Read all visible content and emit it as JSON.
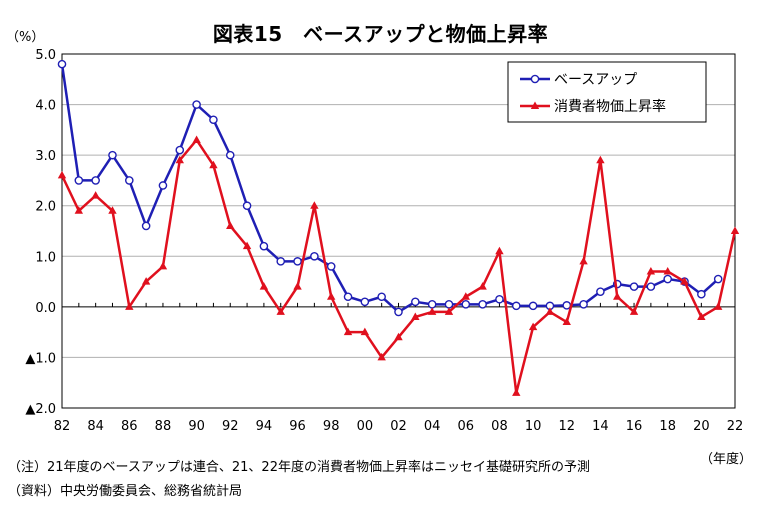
{
  "title": "図表15　ベースアップと物価上昇率",
  "y_unit": "（%）",
  "x_unit": "（年度）",
  "notes": [
    "（注）21年度のベースアップは連合、21、22年度の消費者物価上昇率はニッセイ基礎研究所の予測",
    "（資料）中央労働委員会、総務省統計局"
  ],
  "colors": {
    "base_up": "#1f1fb4",
    "cpi": "#e0101e",
    "grid": "#b0b0b0"
  },
  "chart_data": {
    "type": "line",
    "title": "図表15　ベースアップと物価上昇率",
    "xlabel": "（年度）",
    "ylabel": "（%）",
    "ylim": [
      -2.0,
      5.0
    ],
    "x": [
      82,
      83,
      84,
      85,
      86,
      87,
      88,
      89,
      90,
      91,
      92,
      93,
      94,
      95,
      96,
      97,
      98,
      99,
      0,
      1,
      2,
      3,
      4,
      5,
      6,
      7,
      8,
      9,
      10,
      11,
      12,
      13,
      14,
      15,
      16,
      17,
      18,
      19,
      20,
      21,
      22
    ],
    "x_tick_labels": [
      "82",
      "84",
      "86",
      "88",
      "90",
      "92",
      "94",
      "96",
      "98",
      "00",
      "02",
      "04",
      "06",
      "08",
      "10",
      "12",
      "14",
      "16",
      "18",
      "20",
      "22"
    ],
    "y_tick_labels": [
      "5.0",
      "4.0",
      "3.0",
      "2.0",
      "1.0",
      "0.0",
      "▲1.0",
      "▲2.0"
    ],
    "y_ticks": [
      5,
      4,
      3,
      2,
      1,
      0,
      -1,
      -2
    ],
    "grid": true,
    "legend_position": "top-right",
    "series": [
      {
        "name": "ベースアップ",
        "color": "#1f1fb4",
        "marker": "circle",
        "values": [
          4.8,
          2.5,
          2.5,
          3.0,
          2.5,
          1.6,
          2.4,
          3.1,
          4.0,
          3.7,
          3.0,
          2.0,
          1.2,
          0.9,
          0.9,
          1.0,
          0.8,
          0.2,
          0.1,
          0.2,
          -0.1,
          0.1,
          0.05,
          0.05,
          0.05,
          0.05,
          0.15,
          0.02,
          0.02,
          0.02,
          0.03,
          0.05,
          0.3,
          0.45,
          0.4,
          0.4,
          0.55,
          0.5,
          0.25,
          0.55,
          null
        ]
      },
      {
        "name": "消費者物価上昇率",
        "color": "#e0101e",
        "marker": "triangle",
        "values": [
          2.6,
          1.9,
          2.2,
          1.9,
          0.0,
          0.5,
          0.8,
          2.9,
          3.3,
          2.8,
          1.6,
          1.2,
          0.4,
          -0.1,
          0.4,
          2.0,
          0.2,
          -0.5,
          -0.5,
          -1.0,
          -0.6,
          -0.2,
          -0.1,
          -0.1,
          0.2,
          0.4,
          1.1,
          -1.7,
          -0.4,
          -0.1,
          -0.3,
          0.9,
          2.9,
          0.2,
          -0.1,
          0.7,
          0.7,
          0.5,
          -0.2,
          0.0,
          1.5
        ]
      }
    ]
  }
}
